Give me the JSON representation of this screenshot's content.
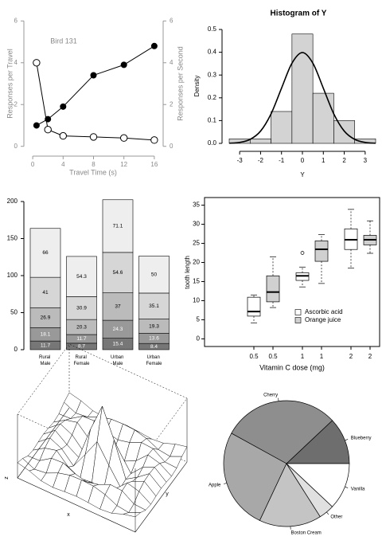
{
  "chart_data": [
    {
      "type": "line",
      "annotation": "Bird 131",
      "xlabel": "Travel Time (s)",
      "ylabel": "Responses per Travel",
      "y2label": "Responses per Second",
      "x": [
        0.5,
        2,
        4,
        8,
        12,
        16
      ],
      "xlim": [
        -0.64,
        16.64
      ],
      "xticks": [
        0,
        4,
        8,
        12,
        16
      ],
      "ylim": [
        -0.24,
        6.24
      ],
      "yticks": [
        0,
        2,
        4,
        6
      ],
      "y2lim": [
        -0.24,
        6.24
      ],
      "y2ticks": [
        0,
        2,
        4,
        6
      ],
      "series": [
        {
          "color": "#000000",
          "marker": "open",
          "values": [
            4,
            0.8,
            0.5,
            0.45,
            0.4,
            0.3
          ]
        },
        {
          "color": "#000000",
          "marker": "filled",
          "axis": "y2",
          "values": [
            1,
            1.3,
            1.9,
            3.4,
            3.9,
            4.8
          ]
        }
      ]
    },
    {
      "type": "histogram",
      "title": "Histogram of Y",
      "xlabel": "Y",
      "ylabel": "Density",
      "color": "#d3d3d3",
      "bins": [
        -3.5,
        -2.5,
        -1.5,
        -0.5,
        0.5,
        1.5,
        2.5,
        3.5
      ],
      "values": [
        0.02,
        0.02,
        0.14,
        0.48,
        0.22,
        0.1,
        0.02
      ],
      "xlim": [
        -3.5,
        3.5
      ],
      "xticks": [
        -3,
        -2,
        -1,
        0,
        1,
        2,
        3
      ],
      "ylim": [
        0,
        0.5
      ],
      "yticks": [
        {
          "value": 0,
          "label": "0.0"
        },
        0.1,
        0.2,
        0.3,
        0.4,
        0.5
      ],
      "curve": {
        "x": [
          -3.5,
          -3,
          -2.5,
          -2,
          -1.5,
          -1,
          -0.5,
          0,
          0.5,
          1,
          1.5,
          2,
          2.5,
          3,
          3.5
        ],
        "values": [
          0.0009,
          0.0044,
          0.0175,
          0.054,
          0.1295,
          0.242,
          0.3521,
          0.3989,
          0.3521,
          0.242,
          0.1295,
          0.054,
          0.0175,
          0.0044,
          0.0009
        ]
      }
    },
    {
      "type": "stacked_bar",
      "categories": [
        "Rural Male",
        "Rural Female",
        "Urban Male",
        "Urban Female"
      ],
      "ylim": [
        0,
        200
      ],
      "yticks": [
        0,
        50,
        100,
        150,
        200
      ],
      "series": [
        {
          "color": "#777777",
          "label_color": "#ffffff",
          "values": [
            11.7,
            8.7,
            15.4,
            8.4
          ]
        },
        {
          "color": "#999999",
          "label_color": "#ffffff",
          "values": [
            18.1,
            11.7,
            24.3,
            13.6
          ]
        },
        {
          "color": "#bbbbbb",
          "label_color": "#000000",
          "values": [
            26.9,
            20.3,
            37,
            19.3
          ]
        },
        {
          "color": "#d6d6d6",
          "label_color": "#000000",
          "values": [
            41,
            30.9,
            54.6,
            35.1
          ]
        },
        {
          "color": "#eeeeee",
          "label_color": "#000000",
          "values": [
            66,
            54.3,
            71.1,
            50
          ]
        }
      ]
    },
    {
      "type": "box",
      "xlabel": "Vitamin C dose (mg)",
      "ylabel": "tooth length",
      "categories": [
        "0.5",
        "0.5",
        "1",
        "1",
        "2",
        "2"
      ],
      "ylim": [
        -2,
        37
      ],
      "yticks": [
        0,
        5,
        10,
        15,
        20,
        25,
        30,
        35
      ],
      "series": [
        {
          "name": "Ascorbic acid",
          "color": "#ffffff",
          "boxes": [
            {
              "min": 4.2,
              "q1": 5.95,
              "median": 7.15,
              "q3": 10.9,
              "max": 11.5,
              "outliers": []
            },
            {
              "min": 13.6,
              "q1": 15.3,
              "median": 16.5,
              "q3": 17.3,
              "max": 18.8,
              "outliers": [
                22.5
              ]
            },
            {
              "min": 18.5,
              "q1": 23.4,
              "median": 25.95,
              "q3": 28.8,
              "max": 33.9,
              "outliers": []
            }
          ]
        },
        {
          "name": "Orange juice",
          "color": "#d0d0d0",
          "boxes": [
            {
              "min": 8.2,
              "q1": 9.7,
              "median": 12.25,
              "q3": 16.5,
              "max": 21.5,
              "outliers": []
            },
            {
              "min": 14.5,
              "q1": 20.3,
              "median": 23.45,
              "q3": 25.65,
              "max": 27.3,
              "outliers": []
            },
            {
              "min": 22.4,
              "q1": 24.6,
              "median": 25.95,
              "q3": 27.1,
              "max": 30.9,
              "outliers": []
            }
          ]
        }
      ]
    },
    {
      "type": "surface",
      "xlabel": "x",
      "ylabel": "y",
      "zlabel": "z",
      "zlim": [
        -0.22,
        1
      ],
      "z": [
        [
          0.071,
          0.019,
          -0.067,
          -0.091,
          -0.069,
          -0.054,
          -0.069,
          -0.091,
          -0.067,
          0.019,
          0.071
        ],
        [
          0.019,
          -0.084,
          -0.054,
          0.052,
          0.112,
          0.124,
          0.112,
          0.052,
          -0.054,
          -0.084,
          0.019
        ],
        [
          -0.067,
          -0.054,
          0.095,
          0.111,
          0.007,
          -0.047,
          0.007,
          0.111,
          0.095,
          -0.054,
          -0.067
        ],
        [
          -0.091,
          0.052,
          0.111,
          -0.103,
          -0.217,
          -0.189,
          -0.217,
          -0.103,
          0.111,
          0.052,
          -0.091
        ],
        [
          -0.069,
          0.112,
          0.007,
          -0.217,
          0.109,
          0.455,
          0.109,
          -0.217,
          0.007,
          0.112,
          -0.069
        ],
        [
          -0.054,
          0.124,
          -0.047,
          -0.189,
          0.455,
          1,
          0.455,
          -0.189,
          -0.047,
          0.124,
          -0.054
        ],
        [
          -0.069,
          0.112,
          0.007,
          -0.217,
          0.109,
          0.455,
          0.109,
          -0.217,
          0.007,
          0.112,
          -0.069
        ],
        [
          -0.091,
          0.052,
          0.111,
          -0.103,
          -0.217,
          -0.189,
          -0.217,
          -0.103,
          0.111,
          0.052,
          -0.091
        ],
        [
          -0.067,
          -0.054,
          0.095,
          0.111,
          0.007,
          -0.047,
          0.007,
          0.111,
          0.095,
          -0.054,
          -0.067
        ],
        [
          0.019,
          -0.084,
          -0.054,
          0.052,
          0.112,
          0.124,
          0.112,
          0.052,
          -0.054,
          -0.084,
          0.019
        ],
        [
          0.071,
          0.019,
          -0.067,
          -0.091,
          -0.069,
          -0.054,
          -0.069,
          -0.091,
          -0.067,
          0.019,
          0.071
        ]
      ]
    },
    {
      "type": "pie",
      "categories": [
        "Blueberry",
        "Cherry",
        "Apple",
        "Boston Cream",
        "Other",
        "Vanilla"
      ],
      "values": [
        0.12,
        0.3,
        0.26,
        0.16,
        0.04,
        0.12
      ],
      "colors": [
        "#6e6e6e",
        "#8e8e8e",
        "#a8a8a8",
        "#c4c4c4",
        "#e0e0e0",
        "#ffffff"
      ]
    }
  ]
}
